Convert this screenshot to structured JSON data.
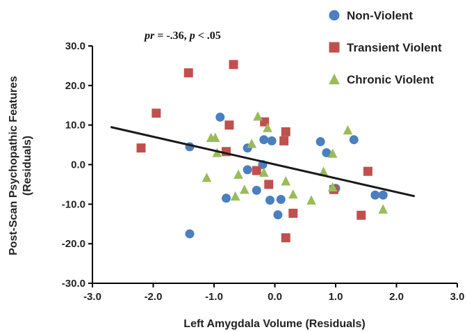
{
  "chart_data": {
    "type": "scatter",
    "xlabel": "Left Amygdala Volume (Residuals)",
    "ylabel_line1": "Post-Scan Psychopathic Features",
    "ylabel_line2": "(Residuals)",
    "annotation": {
      "pr_symbol": "pr",
      "pr_value": " = -.36, ",
      "p_symbol": "p",
      "p_value": " < .05"
    },
    "xlim": [
      -3.0,
      3.0
    ],
    "ylim": [
      -30.0,
      30.0
    ],
    "x_ticks": [
      -3.0,
      -2.0,
      -1.0,
      0.0,
      1.0,
      2.0,
      3.0
    ],
    "x_tick_labels": [
      "-3.0",
      "-2.0",
      "-1.0",
      "0.0",
      "1.0",
      "2.0",
      "3.0"
    ],
    "y_ticks": [
      30,
      20,
      10,
      0,
      -10,
      -20,
      -30
    ],
    "y_tick_labels": [
      "30.0",
      "20.0",
      "10.0",
      "0.0",
      "-10.0",
      "-20.0",
      "-30.0"
    ],
    "grid": false,
    "legend_position": "top-right",
    "regression_line": {
      "x": [
        -2.7,
        2.3
      ],
      "y": [
        9.5,
        -8.0
      ]
    },
    "colors": {
      "axis": "#000000",
      "regression": "#1a1a1a"
    },
    "series": [
      {
        "name": "Non-Violent",
        "marker": "circle",
        "color": "#4a7fc0",
        "points": [
          [
            -1.4,
            4.5
          ],
          [
            -1.4,
            -17.5
          ],
          [
            -0.9,
            12.0
          ],
          [
            -0.8,
            -8.5
          ],
          [
            -0.45,
            4.2
          ],
          [
            -0.45,
            -1.3
          ],
          [
            -0.3,
            -6.5
          ],
          [
            -0.2,
            0.0
          ],
          [
            -0.18,
            6.3
          ],
          [
            -0.05,
            6.0
          ],
          [
            -0.08,
            -9.0
          ],
          [
            0.05,
            -12.7
          ],
          [
            0.1,
            -8.8
          ],
          [
            0.75,
            5.8
          ],
          [
            0.85,
            3.0
          ],
          [
            1.0,
            -6.0
          ],
          [
            1.3,
            6.3
          ],
          [
            1.65,
            -7.7
          ],
          [
            1.78,
            -7.7
          ]
        ]
      },
      {
        "name": "Transient Violent",
        "marker": "square",
        "color": "#c0504d",
        "points": [
          [
            -2.2,
            4.2
          ],
          [
            -1.95,
            13.0
          ],
          [
            -1.42,
            23.2
          ],
          [
            -0.68,
            25.3
          ],
          [
            -0.75,
            10.0
          ],
          [
            -0.8,
            3.3
          ],
          [
            -0.3,
            -1.5
          ],
          [
            -0.17,
            10.8
          ],
          [
            0.15,
            6.0
          ],
          [
            0.18,
            8.3
          ],
          [
            -0.1,
            -5.0
          ],
          [
            0.3,
            -12.3
          ],
          [
            0.18,
            -18.5
          ],
          [
            0.97,
            -6.3
          ],
          [
            1.42,
            -12.8
          ],
          [
            1.53,
            -1.7
          ]
        ]
      },
      {
        "name": "Chronic Violent",
        "marker": "triangle",
        "color": "#9bbb59",
        "points": [
          [
            -1.12,
            -3.3
          ],
          [
            -1.05,
            6.8
          ],
          [
            -0.98,
            6.8
          ],
          [
            -0.95,
            3.0
          ],
          [
            -0.65,
            -8.0
          ],
          [
            -0.6,
            -2.5
          ],
          [
            -0.5,
            -6.3
          ],
          [
            -0.38,
            5.3
          ],
          [
            -0.28,
            12.2
          ],
          [
            -0.12,
            9.3
          ],
          [
            -0.18,
            -2.0
          ],
          [
            0.18,
            -4.2
          ],
          [
            0.3,
            -7.5
          ],
          [
            0.6,
            -9.0
          ],
          [
            0.8,
            -1.8
          ],
          [
            0.95,
            -5.7
          ],
          [
            0.95,
            2.8
          ],
          [
            1.2,
            8.7
          ],
          [
            1.78,
            -11.3
          ]
        ]
      }
    ]
  }
}
